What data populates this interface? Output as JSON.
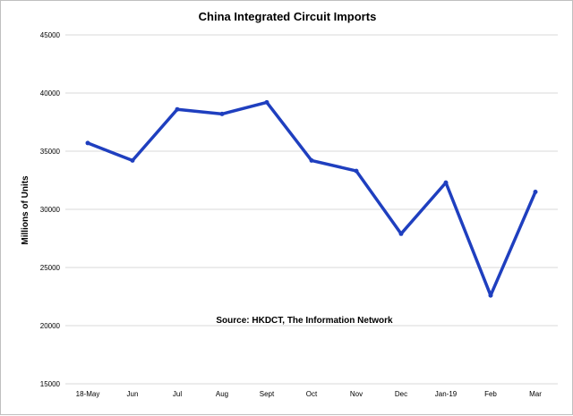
{
  "chart_data": {
    "type": "line",
    "title": "China Integrated Circuit Imports",
    "xlabel": "",
    "ylabel": "Millions of Units",
    "annotation": "Source: HKDCT, The Information Network",
    "categories": [
      "18-May",
      "Jun",
      "Jul",
      "Aug",
      "Sept",
      "Oct",
      "Nov",
      "Dec",
      "Jan-19",
      "Feb",
      "Mar"
    ],
    "series": [
      {
        "values": [
          35700,
          34200,
          38600,
          38200,
          39200,
          34200,
          33300,
          27900,
          32300,
          22600,
          31500
        ]
      }
    ],
    "ylim": [
      15000,
      45000
    ],
    "yticks": [
      "15000",
      "20000",
      "25000",
      "30000",
      "35000",
      "40000",
      "45000"
    ],
    "grid": true,
    "legend": "none",
    "line_color": "#1f3fbf"
  }
}
